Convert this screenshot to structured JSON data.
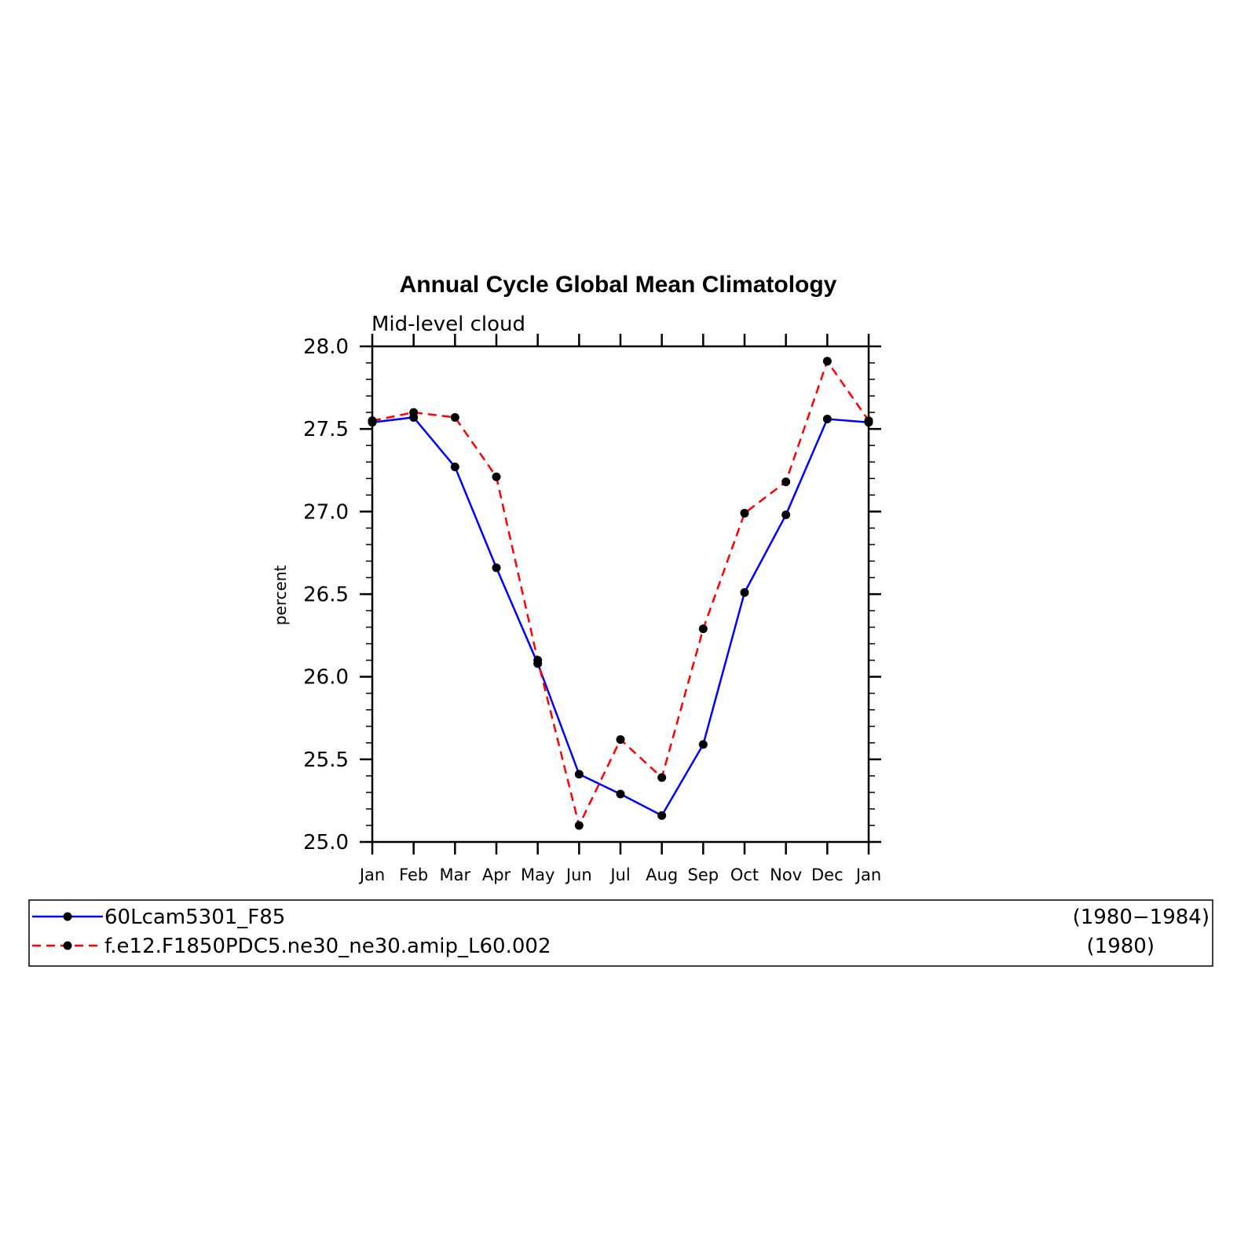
{
  "chart_data": {
    "type": "line",
    "title": "Annual Cycle Global Mean Climatology",
    "subtitle": "Mid-level cloud",
    "xlabel": "",
    "ylabel": "percent",
    "categories": [
      "Jan",
      "Feb",
      "Mar",
      "Apr",
      "May",
      "Jun",
      "Jul",
      "Aug",
      "Sep",
      "Oct",
      "Nov",
      "Dec",
      "Jan"
    ],
    "ylim": [
      25.0,
      28.0
    ],
    "yticks": [
      "25.0",
      "25.5",
      "26.0",
      "26.5",
      "27.0",
      "27.5",
      "28.0"
    ],
    "grid": false,
    "legend_position": "bottom",
    "series": [
      {
        "name": "60Lcam5301_F85",
        "period": "(1980−1984)",
        "color": "#0000ff",
        "style": "solid",
        "marker": "circle",
        "values": [
          27.54,
          27.57,
          27.27,
          26.66,
          26.08,
          25.41,
          25.29,
          25.16,
          25.59,
          26.51,
          26.98,
          27.56,
          27.54
        ]
      },
      {
        "name": "f.e12.F1850PDC5.ne30_ne30.amip_L60.002",
        "period": "(1980)",
        "color": "#ff0000",
        "style": "dashed",
        "marker": "circle",
        "values": [
          27.55,
          27.6,
          27.57,
          27.21,
          26.1,
          25.1,
          25.62,
          25.39,
          26.29,
          26.99,
          27.18,
          27.91,
          27.55
        ]
      }
    ]
  }
}
